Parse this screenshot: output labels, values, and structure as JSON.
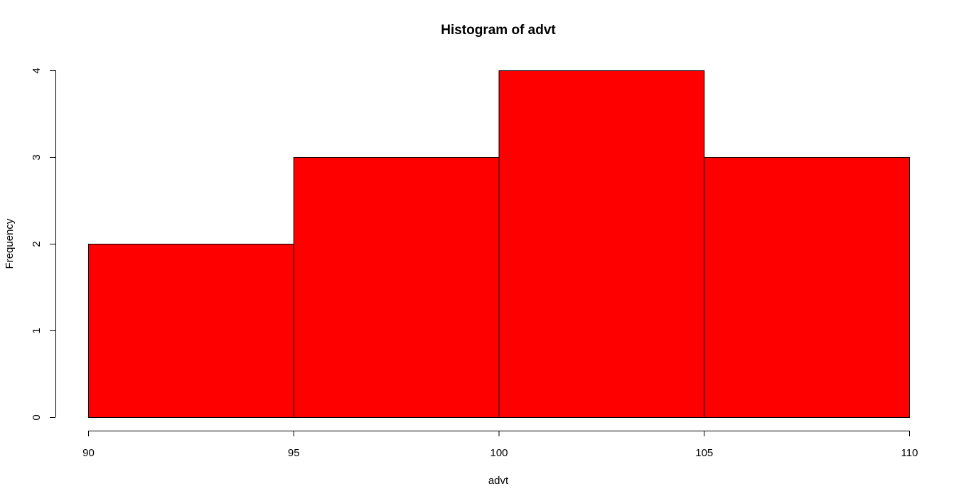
{
  "chart_data": {
    "type": "bar",
    "title": "Histogram of advt",
    "xlabel": "advt",
    "ylabel": "Frequency",
    "bins": [
      {
        "from": 90,
        "to": 95,
        "count": 2
      },
      {
        "from": 95,
        "to": 100,
        "count": 3
      },
      {
        "from": 100,
        "to": 105,
        "count": 4
      },
      {
        "from": 105,
        "to": 110,
        "count": 3
      }
    ],
    "x_ticks": [
      "90",
      "95",
      "100",
      "105",
      "110"
    ],
    "y_ticks": [
      "0",
      "1",
      "2",
      "3",
      "4"
    ],
    "xlim": [
      90,
      110
    ],
    "ylim": [
      0,
      4
    ],
    "grid": false,
    "legend": "none",
    "bar_color": "#ff0000",
    "border_color": "#000000"
  }
}
